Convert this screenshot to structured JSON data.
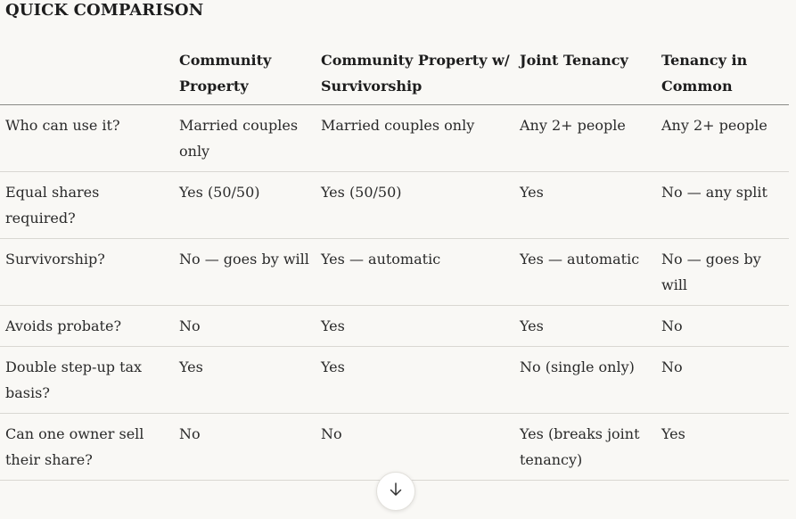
{
  "section": {
    "title": "QUICK COMPARISON"
  },
  "table": {
    "headers": [
      "",
      "Community Property",
      "Community Property w/ Survivorship",
      "Joint Tenancy",
      "Tenancy in Common"
    ],
    "rows": [
      [
        "Who can use it?",
        "Married couples only",
        "Married couples only",
        "Any 2+ people",
        "Any 2+ people"
      ],
      [
        "Equal shares required?",
        "Yes (50/50)",
        "Yes (50/50)",
        "Yes",
        "No — any split"
      ],
      [
        "Survivorship?",
        "No — goes by will",
        "Yes — automatic",
        "Yes — automatic",
        "No — goes by will"
      ],
      [
        "Avoids probate?",
        "No",
        "Yes",
        "Yes",
        "No"
      ],
      [
        "Double step-up tax basis?",
        "Yes",
        "Yes",
        "No (single only)",
        "No"
      ],
      [
        "Can one owner sell their share?",
        "No",
        "No",
        "Yes (breaks joint tenancy)",
        "Yes"
      ]
    ]
  },
  "scroll_button": {
    "icon": "arrow-down-icon"
  }
}
